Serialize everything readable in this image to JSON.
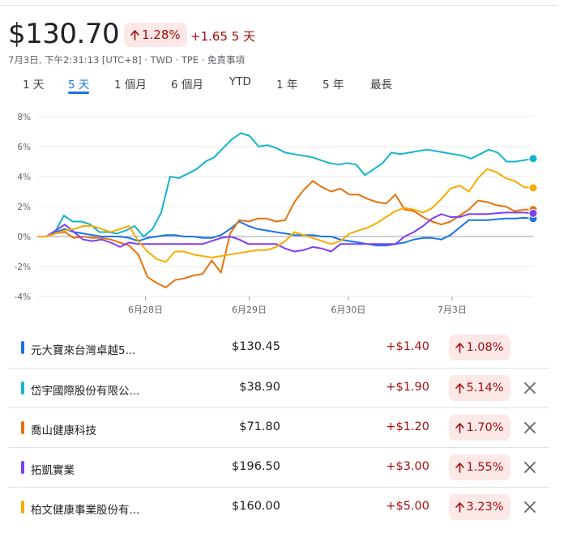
{
  "header": {
    "price": "$130.70",
    "change_pct": "1.28%",
    "change_abs": "+1.65 5 天",
    "meta": "7月3日, 下午2:31:13 [UTC+8] · TWD · TPE · 免責事項"
  },
  "tabs": [
    {
      "label": "1 天",
      "active": false
    },
    {
      "label": "5 天",
      "active": true
    },
    {
      "label": "1 個月",
      "active": false
    },
    {
      "label": "6 個月",
      "active": false
    },
    {
      "label": "YTD",
      "active": false
    },
    {
      "label": "1 年",
      "active": false
    },
    {
      "label": "5 年",
      "active": false
    },
    {
      "label": "最長",
      "active": false
    }
  ],
  "colors": {
    "blue": "#1a73e8",
    "cyan": "#12b5cb",
    "orange": "#e8710a",
    "purple": "#7e3ff2",
    "yellow": "#f9ab00",
    "up_red": "#a50e0e",
    "up_bg": "#fce8e6"
  },
  "chart_data": {
    "type": "line",
    "y_tick_labels": [
      "8%",
      "6%",
      "4%",
      "2%",
      "0%",
      "-2%",
      "-4%"
    ],
    "y_ticks": [
      8,
      6,
      4,
      2,
      0,
      -2,
      -4
    ],
    "ylim": [
      -4,
      8
    ],
    "x_tick_labels": [
      "6月28日",
      "6月29日",
      "6月30日",
      "7月3日"
    ],
    "x_ticks": [
      12,
      23.5,
      34.5,
      46
    ],
    "xlim": [
      0,
      55
    ],
    "series": [
      {
        "name": "元大寶來台灣卓越5...",
        "color": "#1a73e8",
        "values": [
          0,
          0,
          0.3,
          0.5,
          0.3,
          0.2,
          0.1,
          0,
          0,
          0,
          -0.1,
          -0.3,
          -0.1,
          0,
          0.1,
          0.1,
          0,
          0,
          -0.1,
          -0.1,
          0.1,
          0.5,
          1,
          0.7,
          0.5,
          0.4,
          0.3,
          0.2,
          0.1,
          0.1,
          0.1,
          0,
          0,
          -0.2,
          -0.3,
          -0.4,
          -0.5,
          -0.6,
          -0.6,
          -0.5,
          -0.4,
          -0.2,
          -0.1,
          -0.1,
          -0.2,
          0.1,
          0.6,
          1.1,
          1.1,
          1.1,
          1.15,
          1.2,
          1.2,
          1.25,
          1.2
        ]
      },
      {
        "name": "岱宇國際股份有限公...",
        "color": "#12b5cb",
        "values": [
          0,
          0,
          0.3,
          1.4,
          1,
          1,
          0.8,
          0.3,
          0.3,
          0.2,
          0.4,
          0.7,
          0,
          0.5,
          1.6,
          4,
          3.9,
          4.2,
          4.5,
          5,
          5.3,
          5.9,
          6.5,
          6.9,
          6.7,
          6,
          6.1,
          5.9,
          5.6,
          5.5,
          5.4,
          5.3,
          5.1,
          4.9,
          4.8,
          4.9,
          4.8,
          4.1,
          4.5,
          4.9,
          5.6,
          5.5,
          5.6,
          5.7,
          5.8,
          5.7,
          5.6,
          5.5,
          5.4,
          5.2,
          5.5,
          5.8,
          5.6,
          5,
          5,
          5.1,
          5.2
        ]
      },
      {
        "name": "喬山健康科技",
        "color": "#e8710a",
        "values": [
          0,
          0,
          0.2,
          0.3,
          -0.1,
          0,
          -0.1,
          -0.1,
          -0.2,
          -0.4,
          -0.6,
          -1.2,
          -2.7,
          -3.1,
          -3.4,
          -2.9,
          -2.8,
          -2.6,
          -2.5,
          -1.6,
          -2.4,
          0.2,
          1.1,
          1,
          1.2,
          1.2,
          1,
          1.1,
          2.3,
          3.1,
          3.7,
          3.3,
          3,
          3.2,
          2.8,
          2.8,
          2.5,
          2.3,
          2.2,
          2.8,
          1.8,
          1.7,
          1.3,
          1,
          0.8,
          1,
          1.4,
          1.8,
          2.4,
          2.3,
          2.1,
          2,
          1.7,
          1.8,
          1.8
        ]
      },
      {
        "name": "拓凱實業",
        "color": "#7e3ff2",
        "values": [
          0,
          0,
          0.4,
          0.8,
          0.3,
          -0.2,
          -0.3,
          -0.2,
          -0.4,
          -0.7,
          -0.4,
          -0.5,
          -0.5,
          -0.5,
          -0.5,
          -0.5,
          -0.5,
          -0.5,
          -0.5,
          -0.3,
          -0.1,
          0,
          -0.2,
          -0.5,
          -0.5,
          -0.5,
          -0.5,
          -0.8,
          -1,
          -0.9,
          -0.7,
          -0.8,
          -1,
          -0.5,
          -0.5,
          -0.5,
          -0.5,
          -0.5,
          -0.5,
          -0.5,
          0,
          0.3,
          0.7,
          1.2,
          1.5,
          1.3,
          1.3,
          1.5,
          1.5,
          1.5,
          1.55,
          1.6,
          1.6,
          1.6,
          1.55
        ]
      },
      {
        "name": "柏文健康事業股份有...",
        "color": "#f9ab00",
        "values": [
          0,
          0,
          0.2,
          0.4,
          0.5,
          0.7,
          0.7,
          0.5,
          0.3,
          0.5,
          0.7,
          -0.3,
          -1,
          -1.5,
          -1.7,
          -1,
          -1,
          -1.2,
          -1.3,
          -1.4,
          -1.3,
          -1.2,
          -1.1,
          -1,
          -0.9,
          -0.9,
          -0.7,
          -0.3,
          0.3,
          0.1,
          -0.1,
          -0.3,
          -0.5,
          -0.3,
          0.2,
          0.4,
          0.6,
          0.9,
          1.3,
          1.7,
          1.9,
          1.8,
          1.6,
          1.9,
          2.5,
          3.2,
          3.4,
          3,
          3.9,
          4.5,
          4.3,
          3.9,
          3.7,
          3.3,
          3.25
        ]
      }
    ]
  },
  "rows": [
    {
      "name": "元大寶來台灣卓越5...",
      "price": "$130.45",
      "change": "+$1.40",
      "pct": "1.08%",
      "color": "#1a73e8",
      "closable": false
    },
    {
      "name": "岱宇國際股份有限公...",
      "price": "$38.90",
      "change": "+$1.90",
      "pct": "5.14%",
      "color": "#12b5cb",
      "closable": true
    },
    {
      "name": "喬山健康科技",
      "price": "$71.80",
      "change": "+$1.20",
      "pct": "1.70%",
      "color": "#e8710a",
      "closable": true
    },
    {
      "name": "拓凱實業",
      "price": "$196.50",
      "change": "+$3.00",
      "pct": "1.55%",
      "color": "#7e3ff2",
      "closable": true
    },
    {
      "name": "柏文健康事業股份有...",
      "price": "$160.00",
      "change": "+$5.00",
      "pct": "3.23%",
      "color": "#f9ab00",
      "closable": true
    }
  ]
}
